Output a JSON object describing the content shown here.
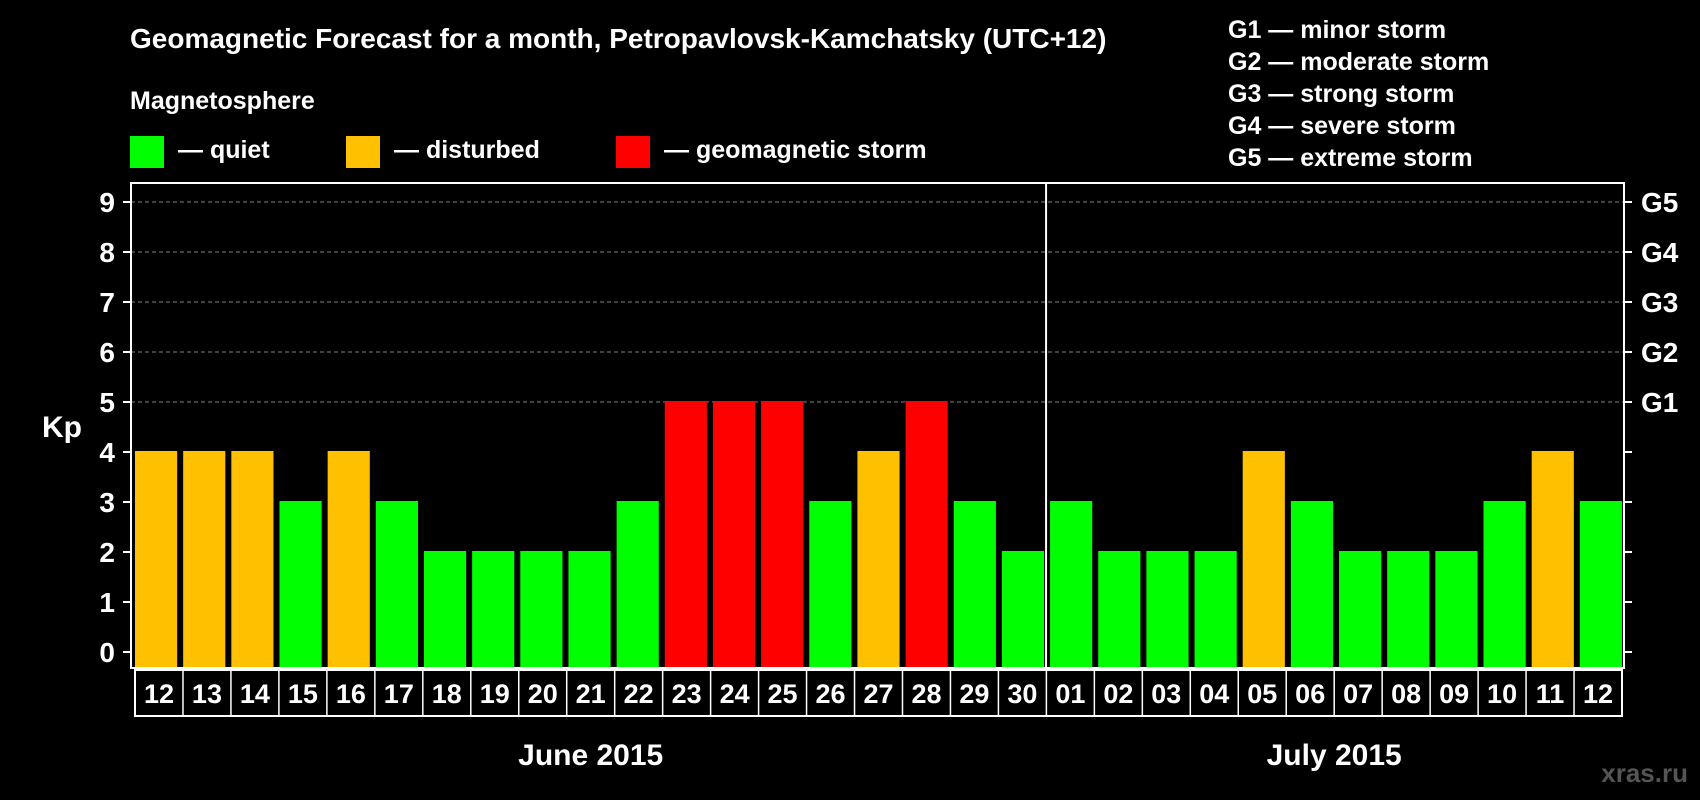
{
  "chart_data": {
    "type": "bar",
    "title": "Geomagnetic Forecast for a month, Petropavlovsk-Kamchatsky (UTC+12)",
    "ylabel": "Kp",
    "ylim": [
      0,
      9
    ],
    "yticks": [
      "0",
      "1",
      "2",
      "3",
      "4",
      "5",
      "6",
      "7",
      "8",
      "9"
    ],
    "right_axis": [
      {
        "kp": 5,
        "label": "G1"
      },
      {
        "kp": 6,
        "label": "G2"
      },
      {
        "kp": 7,
        "label": "G3"
      },
      {
        "kp": 8,
        "label": "G4"
      },
      {
        "kp": 9,
        "label": "G5"
      }
    ],
    "legend": {
      "title": "Magnetosphere",
      "entries": [
        {
          "label": "— quiet",
          "color": "#00ff00"
        },
        {
          "label": "— disturbed",
          "color": "#ffc000"
        },
        {
          "label": "— geomagnetic storm",
          "color": "#ff0000"
        }
      ]
    },
    "storm_scale": [
      "G1 — minor storm",
      "G2 — moderate storm",
      "G3 — strong storm",
      "G4 — severe storm",
      "G5 — extreme storm"
    ],
    "months": [
      {
        "label": "June 2015",
        "start": 0,
        "end": 18
      },
      {
        "label": "July 2015",
        "start": 19,
        "end": 30
      }
    ],
    "categories": [
      "12",
      "13",
      "14",
      "15",
      "16",
      "17",
      "18",
      "19",
      "20",
      "21",
      "22",
      "23",
      "24",
      "25",
      "26",
      "27",
      "28",
      "29",
      "30",
      "01",
      "02",
      "03",
      "04",
      "05",
      "06",
      "07",
      "08",
      "09",
      "10",
      "11",
      "12"
    ],
    "values": [
      4,
      4,
      4,
      3,
      4,
      3,
      2,
      2,
      2,
      2,
      3,
      5,
      5,
      5,
      3,
      4,
      5,
      3,
      2,
      3,
      2,
      2,
      2,
      4,
      3,
      2,
      2,
      2,
      3,
      4,
      3
    ],
    "colors": {
      "quiet": "#00ff00",
      "disturbed": "#ffc000",
      "storm": "#ff0000",
      "background": "#000000",
      "grid": "#808080"
    },
    "thresholds": {
      "disturbed": 4,
      "storm": 5
    },
    "grid": true
  },
  "watermark": "xras.ru"
}
